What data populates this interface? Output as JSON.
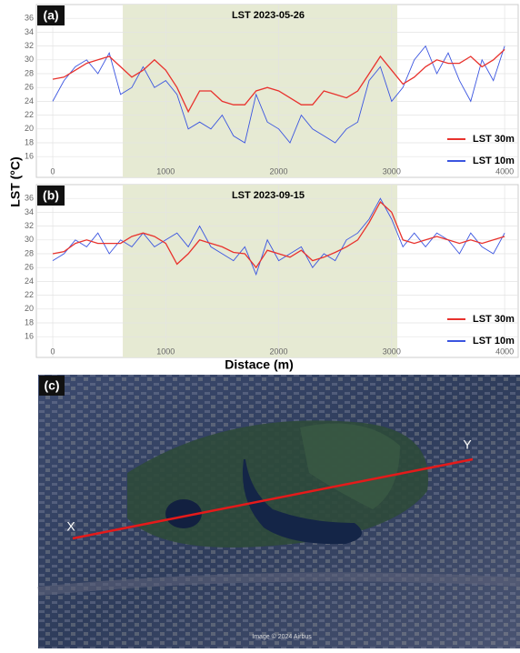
{
  "chart_data": [
    {
      "type": "line",
      "panel": "(a)",
      "title": "LST  2023-05-26",
      "y_label": "LST (°C)",
      "x": [
        0,
        100,
        200,
        300,
        400,
        500,
        600,
        700,
        800,
        900,
        1000,
        1100,
        1200,
        1300,
        1400,
        1500,
        1600,
        1700,
        1800,
        1900,
        2000,
        2100,
        2200,
        2300,
        2400,
        2500,
        2600,
        2700,
        2800,
        2900,
        3000,
        3100,
        3200,
        3300,
        3400,
        3500,
        3600,
        3700,
        3800,
        3900,
        4000
      ],
      "series": [
        {
          "name": "LST 30m",
          "color": "#e8322d",
          "values": [
            27.2,
            27.5,
            28.5,
            29.5,
            30,
            30.5,
            29,
            27.5,
            28.5,
            30,
            28.5,
            26,
            22.5,
            25.5,
            25.5,
            24,
            23.5,
            23.5,
            25.5,
            26,
            25.5,
            24.5,
            23.5,
            23.5,
            25.5,
            25,
            24.5,
            25.5,
            28,
            30.5,
            28.5,
            26.5,
            27.5,
            29,
            30,
            29.5,
            29.5,
            30.5,
            29,
            30,
            31.5
          ]
        },
        {
          "name": "LST 10m",
          "color": "#3b55e0",
          "values": [
            24,
            27,
            29,
            30,
            28,
            31,
            25,
            26,
            29,
            26,
            27,
            25,
            20,
            21,
            20,
            22,
            19,
            18,
            25,
            21,
            20,
            18,
            22,
            20,
            19,
            18,
            20,
            21,
            27,
            29,
            24,
            26,
            30,
            32,
            28,
            31,
            27,
            24,
            30,
            27,
            32
          ]
        }
      ],
      "highlight": [
        620,
        3050
      ],
      "xlim": [
        -145,
        4120
      ],
      "ylim": [
        13,
        38
      ],
      "xticks": [
        0,
        1000,
        2000,
        3000,
        4000
      ],
      "yticks": [
        16,
        18,
        20,
        22,
        24,
        26,
        28,
        30,
        32,
        34,
        36
      ],
      "grid": true,
      "legend": "lower right"
    },
    {
      "type": "line",
      "panel": "(b)",
      "title": "LST  2023-09-15",
      "x_label": "Distace (m)",
      "x": [
        0,
        100,
        200,
        300,
        400,
        500,
        600,
        700,
        800,
        900,
        1000,
        1100,
        1200,
        1300,
        1400,
        1500,
        1600,
        1700,
        1800,
        1900,
        2000,
        2100,
        2200,
        2300,
        2400,
        2500,
        2600,
        2700,
        2800,
        2900,
        3000,
        3100,
        3200,
        3300,
        3400,
        3500,
        3600,
        3700,
        3800,
        3900,
        4000
      ],
      "series": [
        {
          "name": "LST 30m",
          "color": "#e8322d",
          "values": [
            28,
            28.3,
            29.5,
            30,
            29.5,
            29.5,
            29.5,
            30.5,
            31,
            30.5,
            29.5,
            26.5,
            28,
            30,
            29.5,
            29,
            28.2,
            28,
            26,
            28.5,
            28,
            27.5,
            28.5,
            27,
            27.5,
            28.2,
            29,
            30,
            32.5,
            35.5,
            34,
            30,
            29.5,
            30,
            30.5,
            30,
            29.5,
            30,
            29.5,
            30,
            30.5
          ]
        },
        {
          "name": "LST 10m",
          "color": "#3b55e0",
          "values": [
            27,
            28,
            30,
            29,
            31,
            28,
            30,
            29,
            31,
            29,
            30,
            31,
            29,
            32,
            29,
            28,
            27,
            29,
            25,
            30,
            27,
            28,
            29,
            26,
            28,
            27,
            30,
            31,
            33,
            36,
            33,
            29,
            31,
            29,
            31,
            30,
            28,
            31,
            29,
            28,
            31
          ]
        }
      ],
      "highlight": [
        620,
        3050
      ],
      "xlim": [
        -145,
        4120
      ],
      "ylim": [
        13,
        38
      ],
      "xticks": [
        0,
        1000,
        2000,
        3000,
        4000
      ],
      "yticks": [
        16,
        18,
        20,
        22,
        24,
        26,
        28,
        30,
        32,
        34,
        36
      ],
      "grid": true,
      "legend": "lower right"
    }
  ],
  "image": {
    "panel": "(c)",
    "start": "X",
    "end": "Y",
    "credit": "Image © 2024 Airbus"
  }
}
